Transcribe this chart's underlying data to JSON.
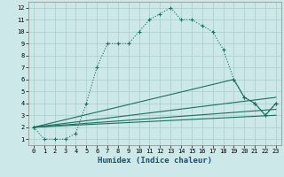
{
  "xlabel": "Humidex (Indice chaleur)",
  "background_color": "#cce8e8",
  "grid_color": "#b0d0d0",
  "line_color": "#1a7060",
  "xlim": [
    -0.5,
    23.5
  ],
  "ylim": [
    0.5,
    12.5
  ],
  "xticks": [
    0,
    1,
    2,
    3,
    4,
    5,
    6,
    7,
    8,
    9,
    10,
    11,
    12,
    13,
    14,
    15,
    16,
    17,
    18,
    19,
    20,
    21,
    22,
    23
  ],
  "yticks": [
    1,
    2,
    3,
    4,
    5,
    6,
    7,
    8,
    9,
    10,
    11,
    12
  ],
  "series1_x": [
    0,
    1,
    2,
    3,
    4,
    5,
    6,
    7,
    8,
    9,
    10,
    11,
    12,
    13,
    14,
    15,
    16,
    17,
    18,
    19,
    20,
    21,
    22,
    23
  ],
  "series1_y": [
    2,
    1,
    1,
    1,
    1.5,
    4,
    7,
    9,
    9,
    9,
    10,
    11,
    11.5,
    12,
    11,
    11,
    10.5,
    10,
    8.5,
    6,
    4.5,
    4,
    3,
    4
  ],
  "series2_x": [
    0,
    19,
    20,
    21,
    22,
    23
  ],
  "series2_y": [
    2,
    6,
    4.5,
    4,
    3,
    4
  ],
  "series3_x": [
    0,
    23
  ],
  "series3_y": [
    2,
    4.5
  ],
  "series4_x": [
    0,
    23
  ],
  "series4_y": [
    2,
    3.5
  ],
  "series5_x": [
    0,
    23
  ],
  "series5_y": [
    2,
    3.0
  ]
}
